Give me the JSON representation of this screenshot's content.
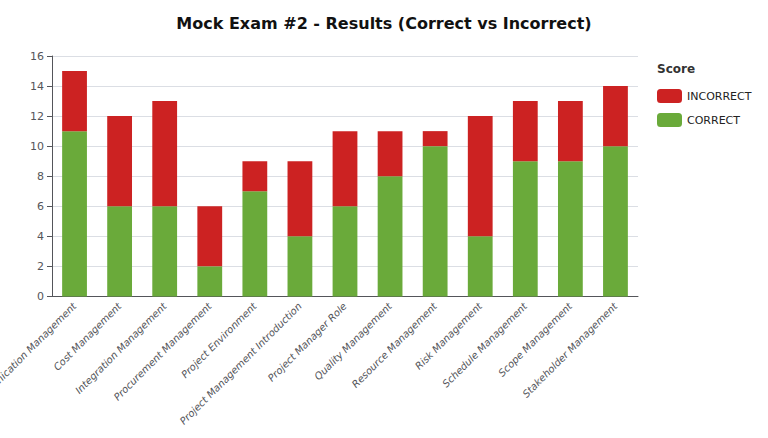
{
  "chart_data": {
    "type": "bar",
    "title": "Mock Exam #2 - Results (Correct vs Incorrect)",
    "categories": [
      "Communication Management",
      "Cost Management",
      "Integration Management",
      "Procurement Management",
      "Project Environment",
      "Project Management Introduction",
      "Project Manager Role",
      "Quality Management",
      "Resource Management",
      "Risk Management",
      "Schedule Management",
      "Scope Management",
      "Stakeholder Management"
    ],
    "series": [
      {
        "name": "CORRECT",
        "color": "#6aaa3a",
        "values": [
          11,
          6,
          6,
          2,
          7,
          4,
          6,
          8,
          10,
          4,
          9,
          9,
          10
        ]
      },
      {
        "name": "INCORRECT",
        "color": "#cc2222",
        "values": [
          4,
          6,
          7,
          4,
          2,
          5,
          5,
          3,
          1,
          8,
          4,
          4,
          4
        ]
      }
    ],
    "stacked": true,
    "ylim": [
      0,
      16
    ],
    "yticks": [
      0,
      2,
      4,
      6,
      8,
      10,
      12,
      14,
      16
    ],
    "grid": true,
    "legend": "upper right",
    "legend_title": "Score"
  }
}
